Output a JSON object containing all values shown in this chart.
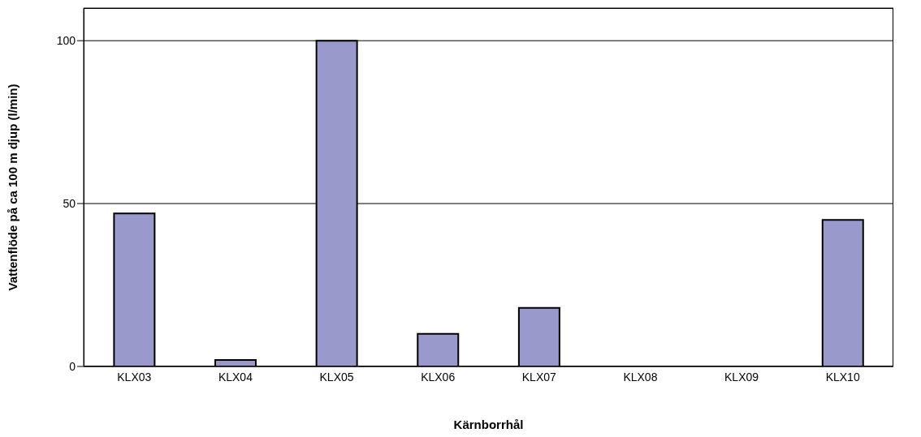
{
  "chart_data": {
    "type": "bar",
    "xlabel": "Kärnborrhål",
    "ylabel": "Vattenflöde på ca 100 m djup (l/min)",
    "categories": [
      "KLX03",
      "KLX04",
      "KLX05",
      "KLX06",
      "KLX07",
      "KLX08",
      "KLX09",
      "KLX10"
    ],
    "values": [
      47,
      2,
      100,
      10,
      18,
      0,
      0,
      45
    ],
    "color": "#9999cc",
    "ylim": [
      0,
      110
    ],
    "yticks": [
      0,
      50,
      100
    ],
    "grid": "y",
    "legend": false
  }
}
